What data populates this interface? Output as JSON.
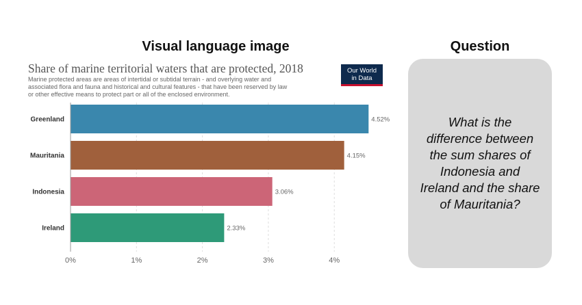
{
  "headings": {
    "visual": "Visual language image",
    "question": "Question"
  },
  "logo": {
    "line1": "Our World",
    "line2": "in Data",
    "bg_color": "#0e2a4d",
    "accent_color": "#c8102e"
  },
  "question": {
    "text": "What is the difference between the sum shares of Indonesia and Ireland and the share of Mauritania?"
  },
  "chart_data": {
    "type": "bar",
    "orientation": "horizontal",
    "title": "Share of marine territorial waters that are protected, 2018",
    "subtitle": "Marine protected areas are areas of intertidal or subtidal terrain - and overlying water and associated flora and fauna and historical and cultural features - that have been reserved by law or other effective means to protect part or all of the enclosed environment.",
    "categories": [
      "Greenland",
      "Mauritania",
      "Indonesia",
      "Ireland"
    ],
    "values": [
      4.52,
      4.15,
      3.06,
      2.33
    ],
    "value_labels": [
      "4.52%",
      "4.15%",
      "3.06%",
      "2.33%"
    ],
    "colors": [
      "#3a87ad",
      "#a0603c",
      "#cc6577",
      "#2e9a78"
    ],
    "xlim": [
      0,
      4.6
    ],
    "ticks": [
      0,
      1,
      2,
      3,
      4
    ],
    "tick_labels": [
      "0%",
      "1%",
      "2%",
      "3%",
      "4%"
    ],
    "grid": true,
    "xlabel": "",
    "ylabel": ""
  }
}
